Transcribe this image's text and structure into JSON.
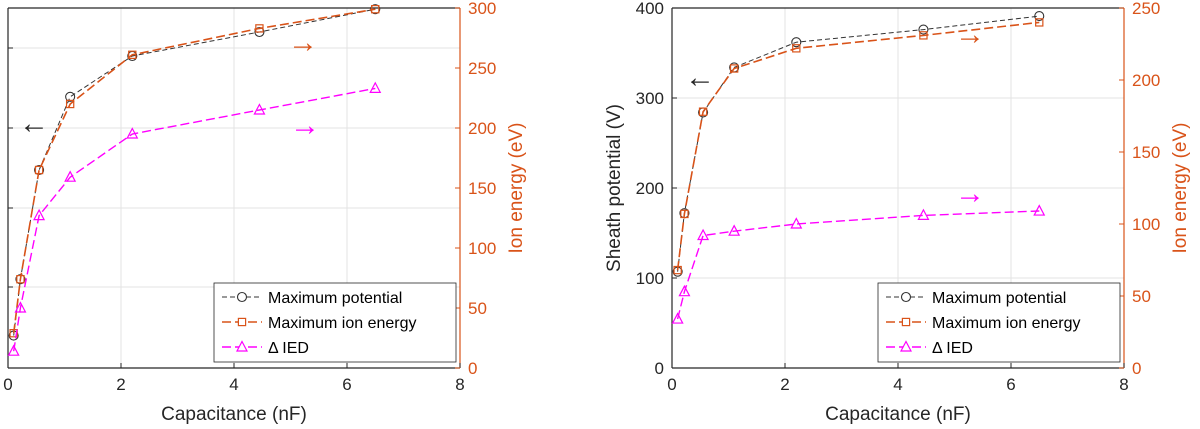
{
  "colors": {
    "potential": "#333333",
    "ion": "#d95319",
    "ied": "#ff00ff",
    "grid": "#e3e3e3",
    "axis": "#262626"
  },
  "arrows": {
    "left": "←",
    "right": "→"
  },
  "chart_data": [
    {
      "type": "line",
      "title": "",
      "xlabel": "Capacitance (nF)",
      "ylabel_left": "",
      "ylabel_right": "Ion energy (eV)",
      "xlim": [
        0,
        8
      ],
      "x_ticks": [
        "0",
        "2",
        "4",
        "6",
        "8"
      ],
      "ylim_right": [
        0,
        300
      ],
      "yticks_right": [
        "0",
        "50",
        "100",
        "150",
        "200",
        "250",
        "300"
      ],
      "left_ticks_unlabeled": [
        0,
        1,
        2,
        3,
        4
      ],
      "legend": [
        "Maximum potential",
        "Maximum ion energy",
        "Δ IED"
      ],
      "legend_position": "bottom-right",
      "series": [
        {
          "name": "Maximum potential",
          "axis": "right",
          "marker": "circle",
          "x": [
            0.1,
            0.22,
            0.55,
            1.1,
            2.2,
            4.45,
            6.5
          ],
          "y": [
            27,
            74,
            165,
            226,
            260,
            280,
            299
          ]
        },
        {
          "name": "Maximum ion energy",
          "axis": "right",
          "marker": "square",
          "x": [
            0.1,
            0.22,
            0.55,
            1.1,
            2.2,
            4.45,
            6.5
          ],
          "y": [
            29,
            74,
            165,
            220,
            261,
            283,
            299
          ]
        },
        {
          "name": "Δ IED",
          "axis": "right",
          "marker": "triangle",
          "x": [
            0.1,
            0.22,
            0.55,
            1.1,
            2.2,
            4.45,
            6.5
          ],
          "y": [
            14,
            50,
            127,
            159,
            195,
            215,
            233
          ]
        }
      ]
    },
    {
      "type": "line",
      "title": "",
      "xlabel": "Capacitance (nF)",
      "ylabel_left": "Sheath potential (V)",
      "ylabel_right": "Ion energy (eV)",
      "xlim": [
        0,
        8
      ],
      "x_ticks": [
        "0",
        "2",
        "4",
        "6",
        "8"
      ],
      "ylim_left": [
        0,
        400
      ],
      "yticks_left": [
        "0",
        "100",
        "200",
        "300",
        "400"
      ],
      "ylim_right": [
        0,
        250
      ],
      "yticks_right": [
        "0",
        "50",
        "100",
        "150",
        "200",
        "250"
      ],
      "legend": [
        "Maximum potential",
        "Maximum ion energy",
        "Δ IED"
      ],
      "legend_position": "bottom-right",
      "series": [
        {
          "name": "Maximum potential",
          "axis": "left",
          "marker": "circle",
          "x": [
            0.1,
            0.22,
            0.55,
            1.1,
            2.2,
            4.45,
            6.5
          ],
          "y": [
            107,
            172,
            284,
            334,
            362,
            376,
            391
          ]
        },
        {
          "name": "Maximum ion energy",
          "axis": "right",
          "marker": "square",
          "x": [
            0.1,
            0.22,
            0.55,
            1.1,
            2.2,
            4.45,
            6.5
          ],
          "y": [
            68,
            107,
            178,
            208,
            222,
            231,
            240
          ]
        },
        {
          "name": "Δ IED",
          "axis": "right",
          "marker": "triangle",
          "x": [
            0.1,
            0.22,
            0.55,
            1.1,
            2.2,
            4.45,
            6.5
          ],
          "y": [
            34,
            53,
            92,
            95,
            100,
            106,
            109
          ]
        }
      ]
    }
  ]
}
